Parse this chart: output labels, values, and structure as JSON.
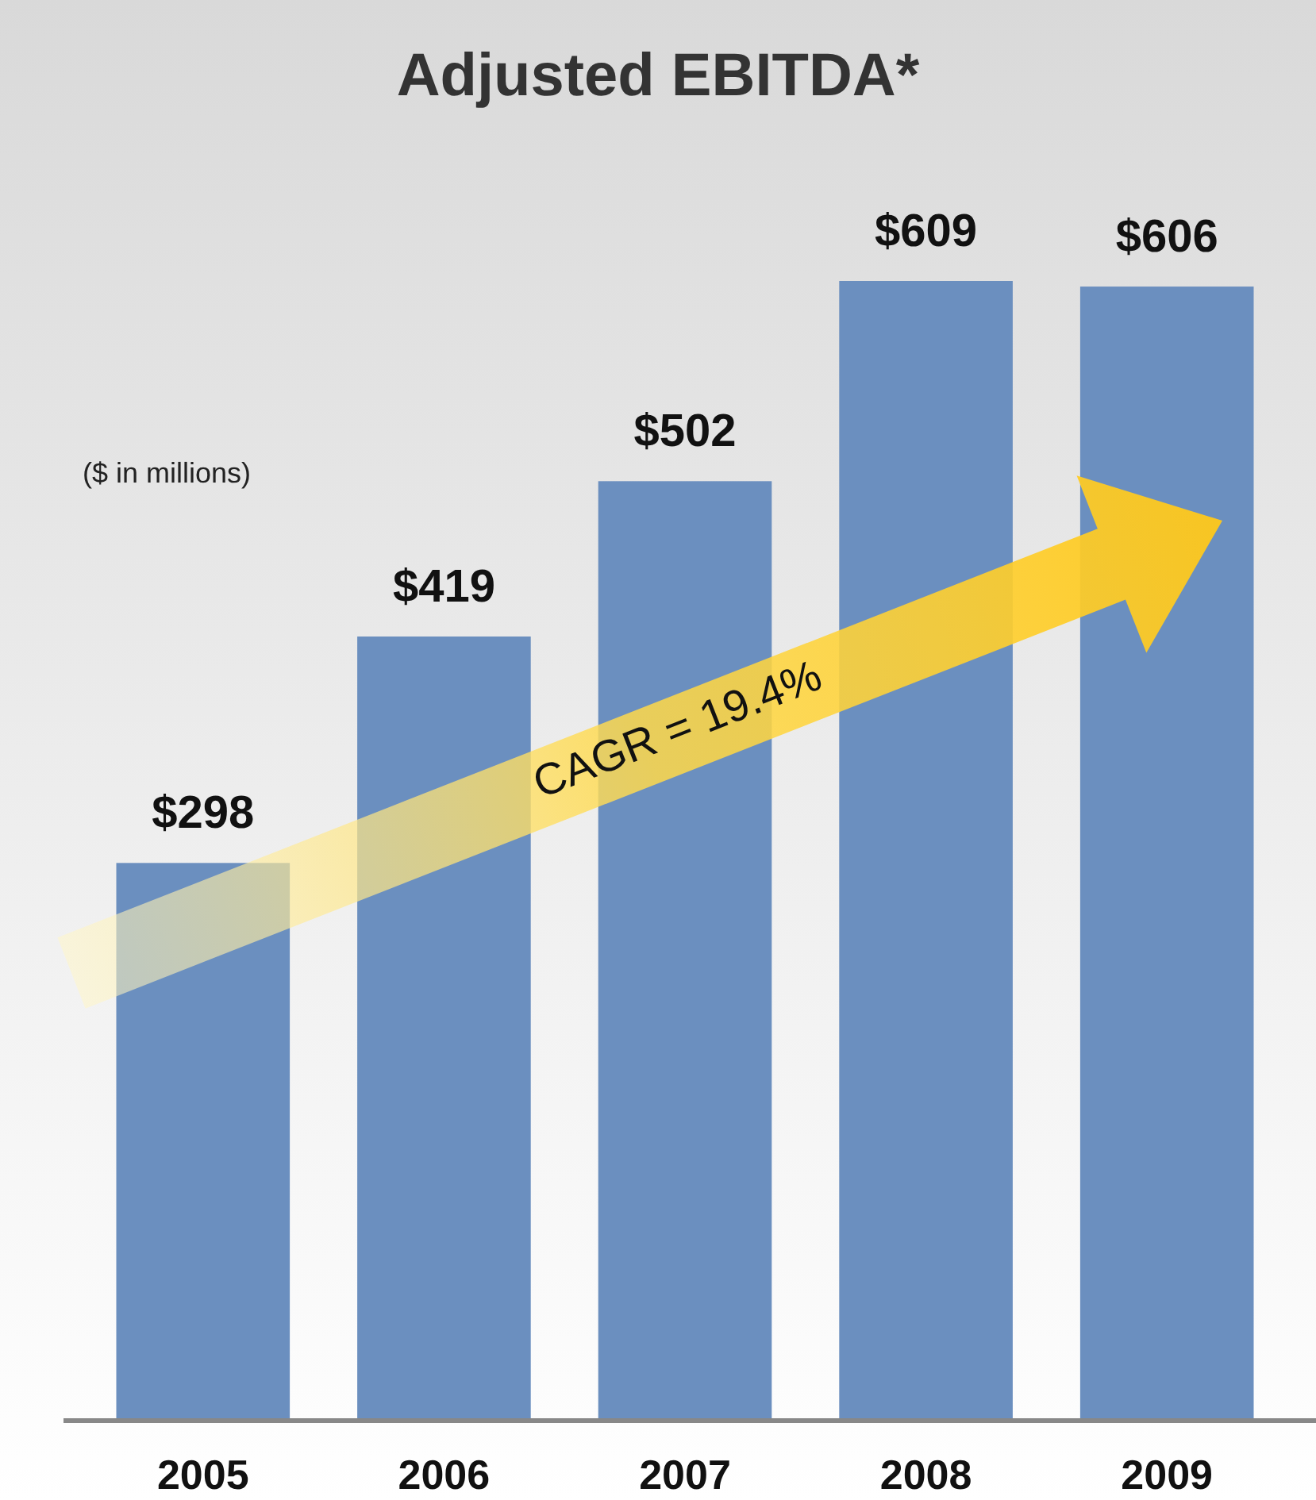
{
  "chart_data": {
    "type": "bar",
    "title": "Adjusted EBITDA*",
    "categories": [
      "2005",
      "2006",
      "2007",
      "2008",
      "2009"
    ],
    "values": [
      298,
      419,
      502,
      609,
      606
    ],
    "value_labels": [
      "$298",
      "$419",
      "$502",
      "$609",
      "$606"
    ],
    "color": "#6b8fbf",
    "annotations": [
      "($ in millions)",
      "CAGR = 19.4%"
    ]
  }
}
